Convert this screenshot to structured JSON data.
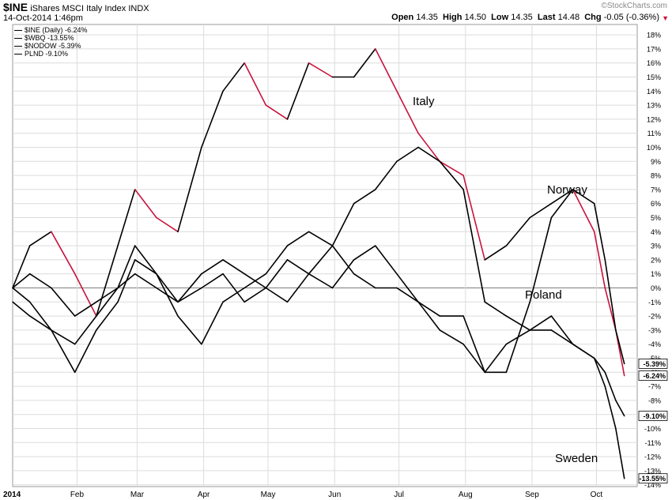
{
  "header": {
    "symbol": "$INE",
    "name": "iShares MSCI Italy Index",
    "exchange": "INDX",
    "date": "14-Oct-2014 1:46pm",
    "watermark": "©StockCharts.com",
    "open_label": "Open",
    "open": "14.35",
    "high_label": "High",
    "high": "14.50",
    "low_label": "Low",
    "low": "14.35",
    "last_label": "Last",
    "last": "14.48",
    "chg_label": "Chg",
    "chg": "-0.05 (-0.36%)",
    "chg_arrow": "down"
  },
  "legend": [
    {
      "label": "$INE (Daily) -6.24%"
    },
    {
      "label": "$WBQ -13.55%"
    },
    {
      "label": "$NODOW -5.39%"
    },
    {
      "label": "PLND -9.10%"
    }
  ],
  "colors": {
    "line": "#000000",
    "down_segment": "#c8143c",
    "grid": "#dcdcdc",
    "zero_line": "#7f7f7f"
  },
  "chart_data": {
    "type": "line",
    "xlabel": "",
    "ylabel": "",
    "x_ticks": [
      "2014",
      "Feb",
      "Mar",
      "Apr",
      "May",
      "Jun",
      "Jul",
      "Aug",
      "Sep",
      "Oct"
    ],
    "y_ticks": [
      "18%",
      "17%",
      "16%",
      "15%",
      "14%",
      "13%",
      "12%",
      "11%",
      "10%",
      "9%",
      "8%",
      "7%",
      "6%",
      "5%",
      "4%",
      "3%",
      "2%",
      "1%",
      "0%",
      "-1%",
      "-2%",
      "-3%",
      "-4%",
      "-5%",
      "-6%",
      "-7%",
      "-8%",
      "-9%",
      "-10%",
      "-11%",
      "-12%",
      "-13%",
      "-14%"
    ],
    "ylim": [
      -14,
      18.5
    ],
    "grid": true,
    "annotations": [
      "Italy",
      "Norway",
      "Poland",
      "Sweden"
    ],
    "end_labels": [
      "-5.39%",
      "-6.24%",
      "-9.10%",
      "-13.55%"
    ],
    "dates": [
      "2014-01-02",
      "2014-01-10",
      "2014-01-20",
      "2014-01-31",
      "2014-02-10",
      "2014-02-20",
      "2014-02-28",
      "2014-03-10",
      "2014-03-20",
      "2014-03-31",
      "2014-04-10",
      "2014-04-20",
      "2014-04-30",
      "2014-05-10",
      "2014-05-20",
      "2014-05-31",
      "2014-06-10",
      "2014-06-20",
      "2014-06-30",
      "2014-07-10",
      "2014-07-20",
      "2014-07-31",
      "2014-08-10",
      "2014-08-20",
      "2014-08-31",
      "2014-09-10",
      "2014-09-20",
      "2014-09-30",
      "2014-10-05",
      "2014-10-10",
      "2014-10-14"
    ],
    "series": [
      {
        "name": "$INE (Daily)",
        "values": [
          0,
          3,
          4,
          1,
          -2,
          3,
          7,
          5,
          4,
          10,
          14,
          16,
          13,
          12,
          16,
          15,
          15,
          17,
          14,
          11,
          9,
          8,
          2,
          3,
          5,
          6,
          7,
          4,
          0,
          -3,
          -6.24
        ]
      },
      {
        "name": "$WBQ",
        "values": [
          0,
          -1,
          -3,
          -6,
          -3,
          -1,
          2,
          1,
          -2,
          -4,
          -1,
          0,
          1,
          3,
          4,
          3,
          6,
          7,
          9,
          10,
          9,
          7,
          -1,
          -2,
          -3,
          -2,
          -4,
          -5,
          -7,
          -10,
          -13.55
        ]
      },
      {
        "name": "$NODOW",
        "values": [
          0,
          1,
          0,
          -2,
          -1,
          0,
          1,
          0,
          -1,
          0,
          1,
          -1,
          0,
          -1,
          1,
          0,
          2,
          3,
          1,
          -1,
          -2,
          -2,
          -6,
          -6,
          -1,
          5,
          7,
          6,
          2,
          -3,
          -5.39
        ]
      },
      {
        "name": "PLND",
        "values": [
          -1,
          -2,
          -3,
          -4,
          -2,
          0,
          3,
          1,
          -1,
          1,
          2,
          1,
          0,
          2,
          1,
          3,
          1,
          0,
          0,
          -1,
          -3,
          -4,
          -6,
          -4,
          -3,
          -3,
          -4,
          -5,
          -6,
          -8,
          -9.1
        ]
      }
    ]
  }
}
